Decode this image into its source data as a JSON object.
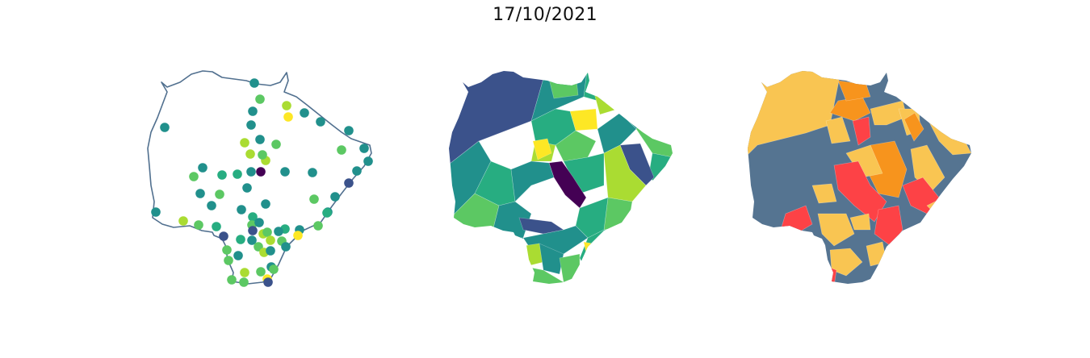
{
  "title": "17/10/2021",
  "colors": {
    "outline": "#51708f",
    "viridis": [
      "#440154",
      "#3b528b",
      "#21908c",
      "#27ad81",
      "#5cc863",
      "#aadc32",
      "#fde725"
    ],
    "risk": {
      "low": "#557491",
      "moderate": "#f9c552",
      "high": "#f7941d",
      "very_high": "#fd4246"
    }
  },
  "maps": [
    {
      "name": "station-points",
      "kind": "points"
    },
    {
      "name": "choropleth-continuous",
      "kind": "choropleth",
      "palette": "viridis"
    },
    {
      "name": "choropleth-categorical",
      "kind": "choropleth",
      "palette": "risk"
    }
  ]
}
